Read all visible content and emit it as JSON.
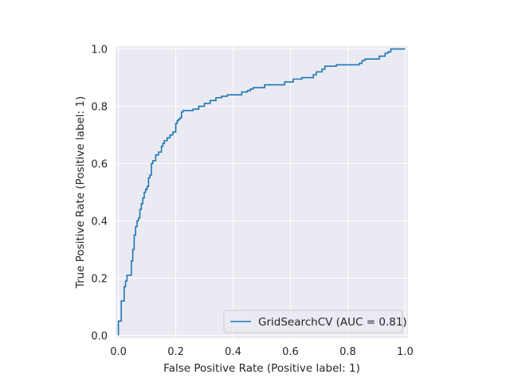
{
  "chart_data": {
    "type": "line",
    "xlabel": "False Positive Rate (Positive label: 1)",
    "ylabel": "True Positive Rate (Positive label: 1)",
    "xlim": [
      -0.01,
      1.01
    ],
    "ylim": [
      -0.01,
      1.01
    ],
    "xticks": [
      "0.0",
      "0.2",
      "0.4",
      "0.6",
      "0.8",
      "1.0"
    ],
    "yticks": [
      "0.0",
      "0.2",
      "0.4",
      "0.6",
      "0.8",
      "1.0"
    ],
    "grid": true,
    "legend_position": "lower right",
    "series": [
      {
        "name": "GridSearchCV (AUC = 0.81)",
        "color": "#1f77b4",
        "points": [
          [
            0.0,
            0.0
          ],
          [
            0.0,
            0.05
          ],
          [
            0.01,
            0.05
          ],
          [
            0.01,
            0.12
          ],
          [
            0.02,
            0.12
          ],
          [
            0.02,
            0.17
          ],
          [
            0.025,
            0.17
          ],
          [
            0.025,
            0.19
          ],
          [
            0.03,
            0.19
          ],
          [
            0.03,
            0.21
          ],
          [
            0.045,
            0.21
          ],
          [
            0.045,
            0.26
          ],
          [
            0.05,
            0.26
          ],
          [
            0.05,
            0.3
          ],
          [
            0.055,
            0.3
          ],
          [
            0.055,
            0.35
          ],
          [
            0.06,
            0.35
          ],
          [
            0.06,
            0.38
          ],
          [
            0.065,
            0.38
          ],
          [
            0.065,
            0.4
          ],
          [
            0.07,
            0.4
          ],
          [
            0.07,
            0.41
          ],
          [
            0.075,
            0.41
          ],
          [
            0.075,
            0.44
          ],
          [
            0.08,
            0.44
          ],
          [
            0.08,
            0.46
          ],
          [
            0.085,
            0.46
          ],
          [
            0.085,
            0.48
          ],
          [
            0.09,
            0.48
          ],
          [
            0.09,
            0.5
          ],
          [
            0.095,
            0.5
          ],
          [
            0.095,
            0.51
          ],
          [
            0.1,
            0.51
          ],
          [
            0.1,
            0.52
          ],
          [
            0.105,
            0.52
          ],
          [
            0.105,
            0.55
          ],
          [
            0.11,
            0.55
          ],
          [
            0.11,
            0.56
          ],
          [
            0.115,
            0.56
          ],
          [
            0.115,
            0.6
          ],
          [
            0.12,
            0.6
          ],
          [
            0.12,
            0.61
          ],
          [
            0.13,
            0.61
          ],
          [
            0.13,
            0.63
          ],
          [
            0.14,
            0.63
          ],
          [
            0.14,
            0.64
          ],
          [
            0.15,
            0.64
          ],
          [
            0.15,
            0.66
          ],
          [
            0.155,
            0.66
          ],
          [
            0.155,
            0.67
          ],
          [
            0.16,
            0.67
          ],
          [
            0.16,
            0.68
          ],
          [
            0.17,
            0.68
          ],
          [
            0.17,
            0.69
          ],
          [
            0.18,
            0.69
          ],
          [
            0.18,
            0.7
          ],
          [
            0.19,
            0.7
          ],
          [
            0.19,
            0.71
          ],
          [
            0.2,
            0.71
          ],
          [
            0.2,
            0.74
          ],
          [
            0.205,
            0.74
          ],
          [
            0.205,
            0.75
          ],
          [
            0.21,
            0.75
          ],
          [
            0.21,
            0.755
          ],
          [
            0.215,
            0.755
          ],
          [
            0.215,
            0.76
          ],
          [
            0.22,
            0.76
          ],
          [
            0.22,
            0.78
          ],
          [
            0.225,
            0.78
          ],
          [
            0.225,
            0.785
          ],
          [
            0.26,
            0.785
          ],
          [
            0.26,
            0.79
          ],
          [
            0.28,
            0.79
          ],
          [
            0.28,
            0.8
          ],
          [
            0.3,
            0.8
          ],
          [
            0.3,
            0.81
          ],
          [
            0.32,
            0.81
          ],
          [
            0.32,
            0.82
          ],
          [
            0.34,
            0.82
          ],
          [
            0.34,
            0.83
          ],
          [
            0.36,
            0.83
          ],
          [
            0.36,
            0.835
          ],
          [
            0.38,
            0.835
          ],
          [
            0.38,
            0.84
          ],
          [
            0.43,
            0.84
          ],
          [
            0.43,
            0.85
          ],
          [
            0.45,
            0.85
          ],
          [
            0.45,
            0.855
          ],
          [
            0.46,
            0.855
          ],
          [
            0.46,
            0.86
          ],
          [
            0.47,
            0.86
          ],
          [
            0.47,
            0.865
          ],
          [
            0.51,
            0.865
          ],
          [
            0.51,
            0.875
          ],
          [
            0.58,
            0.875
          ],
          [
            0.58,
            0.885
          ],
          [
            0.61,
            0.885
          ],
          [
            0.61,
            0.895
          ],
          [
            0.64,
            0.895
          ],
          [
            0.64,
            0.9
          ],
          [
            0.68,
            0.9
          ],
          [
            0.68,
            0.91
          ],
          [
            0.69,
            0.91
          ],
          [
            0.69,
            0.92
          ],
          [
            0.71,
            0.92
          ],
          [
            0.71,
            0.93
          ],
          [
            0.72,
            0.93
          ],
          [
            0.72,
            0.94
          ],
          [
            0.76,
            0.94
          ],
          [
            0.76,
            0.945
          ],
          [
            0.84,
            0.945
          ],
          [
            0.84,
            0.95
          ],
          [
            0.85,
            0.95
          ],
          [
            0.85,
            0.96
          ],
          [
            0.86,
            0.96
          ],
          [
            0.86,
            0.965
          ],
          [
            0.91,
            0.965
          ],
          [
            0.91,
            0.975
          ],
          [
            0.93,
            0.975
          ],
          [
            0.93,
            0.985
          ],
          [
            0.94,
            0.985
          ],
          [
            0.94,
            0.99
          ],
          [
            0.95,
            0.99
          ],
          [
            0.95,
            1.0
          ],
          [
            0.97,
            1.0
          ],
          [
            1.0,
            1.0
          ]
        ]
      }
    ]
  }
}
